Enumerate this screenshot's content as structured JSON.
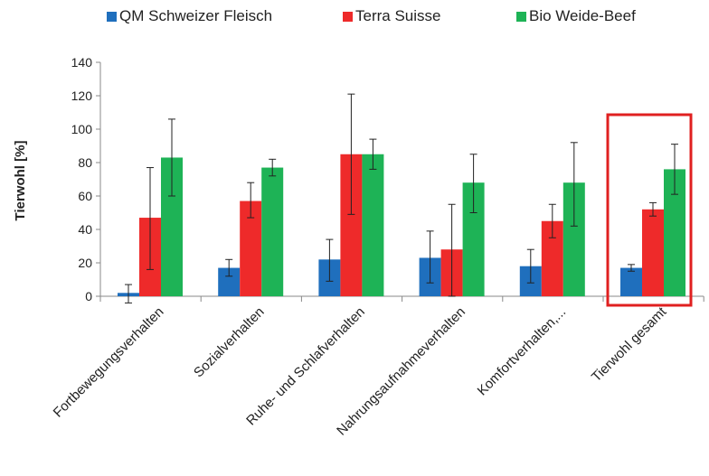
{
  "chart_data": {
    "type": "bar",
    "title": "",
    "ylabel": "Tierwohl [%]",
    "xlabel": "",
    "ylim": [
      0,
      140
    ],
    "yticks": [
      0,
      20,
      40,
      60,
      80,
      100,
      120,
      140
    ],
    "grid": false,
    "legend_position": "top",
    "categories": [
      "Fortbewegungsverhalten",
      "Sozialverhalten",
      "Ruhe- und Schlafverhalten",
      "Nahrungsaufnahmeverhalten",
      "Komfortverhalten,...",
      "Tierwohl gesamt"
    ],
    "series": [
      {
        "name": "QM Schweizer Fleisch",
        "color": "#1f6fbd",
        "values": [
          2,
          17,
          22,
          23,
          18,
          17
        ],
        "error_low": [
          -4,
          12,
          9,
          8,
          8,
          15
        ],
        "error_high": [
          7,
          22,
          34,
          39,
          28,
          19
        ]
      },
      {
        "name": "Terra Suisse",
        "color": "#ee2a2a",
        "values": [
          47,
          57,
          85,
          28,
          45,
          52
        ],
        "error_low": [
          16,
          47,
          49,
          0,
          35,
          48
        ],
        "error_high": [
          77,
          68,
          121,
          55,
          55,
          56
        ]
      },
      {
        "name": "Bio Weide-Beef",
        "color": "#1eb356",
        "values": [
          83,
          77,
          85,
          68,
          68,
          76
        ],
        "error_low": [
          60,
          72,
          76,
          50,
          42,
          61
        ],
        "error_high": [
          106,
          82,
          94,
          85,
          92,
          91
        ]
      }
    ],
    "highlight_category": "Tierwohl gesamt",
    "highlight_color": "#e02020"
  }
}
